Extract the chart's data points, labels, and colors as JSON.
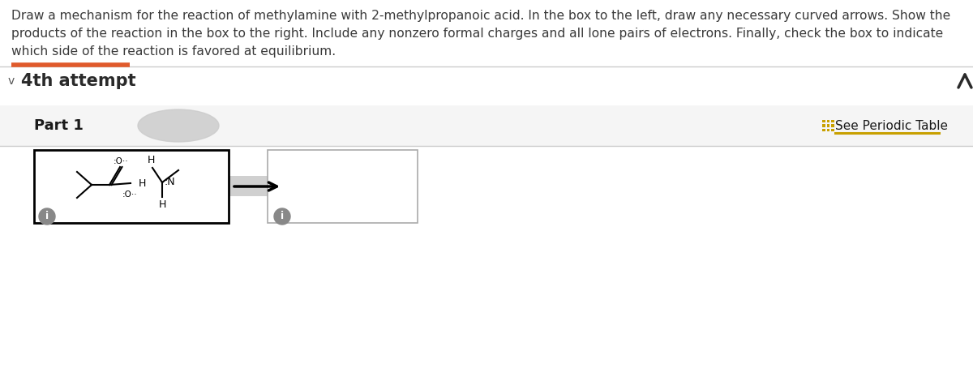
{
  "title_lines": [
    "Draw a mechanism for the reaction of methylamine with 2-methylpropanoic acid. In the box to the left, draw any necessary curved arrows. Show the",
    "products of the reaction in the box to the right. Include any nonzero formal charges and all lone pairs of electrons. Finally, check the box to indicate",
    "which side of the reaction is favored at equilibrium."
  ],
  "attempt_label": "4th attempt",
  "part_label": "Part 1",
  "see_periodic_table": "See Periodic Table",
  "bg_color": "#ffffff",
  "text_color": "#3a3a3a",
  "orange_line_color": "#e05a2b",
  "gold_color": "#c8a000",
  "left_box_color": "#000000",
  "right_box_color": "#aaaaaa",
  "gray_blob_color": "#cccccc",
  "info_circle_color": "#888888",
  "divider_color": "#cccccc",
  "arrow_gray_bg": "#d0d0d0"
}
